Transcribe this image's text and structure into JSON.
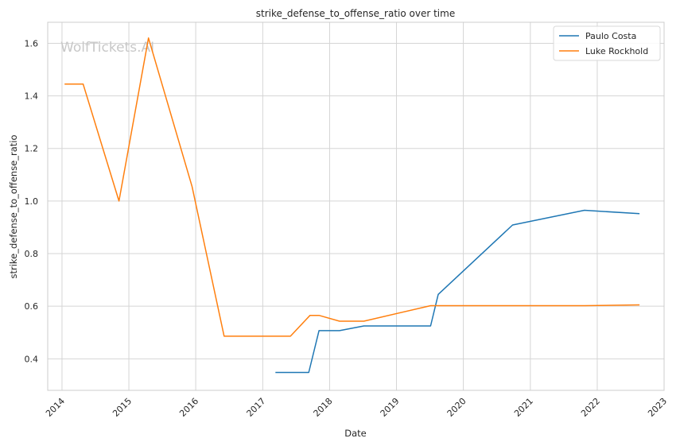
{
  "watermark": "WolfTickets.AI",
  "chart_data": {
    "type": "line",
    "title": "strike_defense_to_offense_ratio over time",
    "xlabel": "Date",
    "ylabel": "strike_defense_to_offense_ratio",
    "xlim": [
      "2013-10-15",
      "2023-01-01"
    ],
    "ylim": [
      0.28,
      1.68
    ],
    "x_ticks": [
      "2014",
      "2015",
      "2016",
      "2017",
      "2018",
      "2019",
      "2020",
      "2021",
      "2022",
      "2023"
    ],
    "y_ticks": [
      "0.4",
      "0.6",
      "0.8",
      "1.0",
      "1.2",
      "1.4",
      "1.6"
    ],
    "grid": true,
    "legend_position": "top-right",
    "series": [
      {
        "name": "Paulo Costa",
        "color": "#1f77b4",
        "points": [
          [
            "2017-03-11",
            0.348
          ],
          [
            "2017-09-09",
            0.348
          ],
          [
            "2017-11-04",
            0.507
          ],
          [
            "2018-02-24",
            0.507
          ],
          [
            "2018-07-07",
            0.525
          ],
          [
            "2019-07-06",
            0.525
          ],
          [
            "2019-08-17",
            0.645
          ],
          [
            "2020-09-26",
            0.909
          ],
          [
            "2021-10-23",
            0.965
          ],
          [
            "2022-08-20",
            0.952
          ]
        ]
      },
      {
        "name": "Luke Rockhold",
        "color": "#ff7f0e",
        "points": [
          [
            "2014-01-15",
            1.445
          ],
          [
            "2014-04-26",
            1.445
          ],
          [
            "2014-11-08",
            1.0
          ],
          [
            "2015-04-18",
            1.62
          ],
          [
            "2015-12-12",
            1.055
          ],
          [
            "2016-06-04",
            0.486
          ],
          [
            "2017-06-01",
            0.486
          ],
          [
            "2017-09-16",
            0.565
          ],
          [
            "2017-11-04",
            0.565
          ],
          [
            "2018-02-24",
            0.543
          ],
          [
            "2018-07-07",
            0.543
          ],
          [
            "2019-07-06",
            0.602
          ],
          [
            "2021-10-23",
            0.602
          ],
          [
            "2022-08-20",
            0.605
          ]
        ]
      }
    ]
  }
}
